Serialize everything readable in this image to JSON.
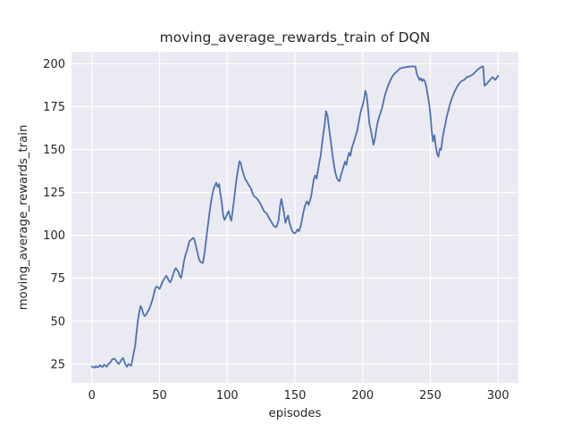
{
  "chart_data": {
    "type": "line",
    "title": "moving_average_rewards_train of DQN",
    "xlabel": "episodes",
    "ylabel": "moving_average_rewards_train",
    "xlim": [
      -15,
      315
    ],
    "ylim": [
      14,
      207
    ],
    "xticks": [
      0,
      50,
      100,
      150,
      200,
      250,
      300
    ],
    "yticks": [
      25,
      50,
      75,
      100,
      125,
      150,
      175,
      200
    ],
    "grid": true,
    "legend_position": "none",
    "style": "seaborn-darkgrid",
    "plot_bg_color": "#eaeaf2",
    "grid_color": "#ffffff",
    "line_color": "#4c72b0",
    "text_color": "#262626",
    "series": [
      {
        "name": "moving_average_rewards_train",
        "x_start": 0,
        "x_step": 1,
        "y": [
          23.5,
          23.2,
          22.9,
          23.8,
          23.1,
          23.3,
          24.4,
          23.6,
          23.3,
          24.6,
          24.1,
          23.4,
          24.8,
          25.4,
          26.2,
          27.7,
          28.1,
          27.9,
          27.0,
          25.6,
          25.1,
          26.3,
          27.7,
          28.6,
          26.5,
          24.6,
          23.4,
          25.0,
          24.4,
          24.0,
          27.6,
          31.8,
          35.4,
          43.0,
          50.0,
          55.2,
          58.9,
          57.2,
          54.3,
          52.9,
          53.6,
          55.1,
          56.4,
          58.2,
          60.5,
          63.1,
          66.3,
          69.4,
          70.2,
          69.6,
          68.8,
          70.4,
          72.6,
          74.1,
          75.2,
          76.4,
          75.0,
          73.4,
          72.6,
          74.5,
          77.0,
          79.5,
          80.9,
          79.8,
          78.6,
          76.1,
          75.2,
          79.5,
          84.7,
          88.2,
          90.5,
          93.2,
          96.5,
          97.2,
          97.9,
          98.6,
          96.9,
          93.4,
          90.0,
          86.5,
          84.8,
          84.0,
          83.9,
          88.5,
          94.3,
          101.2,
          107.3,
          113.4,
          119.4,
          123.8,
          127.2,
          129.3,
          130.7,
          128.1,
          129.9,
          123.8,
          118.6,
          111.6,
          109.0,
          110.6,
          112.5,
          114.2,
          110.8,
          108.5,
          114.2,
          120.3,
          127.2,
          133.3,
          138.5,
          143.2,
          142.0,
          138.5,
          135.9,
          133.3,
          131.9,
          130.7,
          129.0,
          128.1,
          126.4,
          123.8,
          122.6,
          122.0,
          121.5,
          120.3,
          119.1,
          117.7,
          116.0,
          114.2,
          113.5,
          112.9,
          111.5,
          109.9,
          108.7,
          107.3,
          105.9,
          105.0,
          104.7,
          106.2,
          109.0,
          116.9,
          121.2,
          116.9,
          112.5,
          107.3,
          109.9,
          111.6,
          107.3,
          104.7,
          102.4,
          101.4,
          101.2,
          102.1,
          103.5,
          102.4,
          104.7,
          108.2,
          112.5,
          116.0,
          118.6,
          119.8,
          117.7,
          120.1,
          122.9,
          128.0,
          133.0,
          134.9,
          133.0,
          138.0,
          142.7,
          146.4,
          153.1,
          159.4,
          164.6,
          172.4,
          169.8,
          163.7,
          157.6,
          151.6,
          145.5,
          140.3,
          135.9,
          133.3,
          131.9,
          131.6,
          135.1,
          137.7,
          140.3,
          142.9,
          141.1,
          145.5,
          148.1,
          146.4,
          150.7,
          153.3,
          155.9,
          158.5,
          161.1,
          165.4,
          169.8,
          173.3,
          175.9,
          179.3,
          184.3,
          181.5,
          173.9,
          165.0,
          161.8,
          157.0,
          152.8,
          156.0,
          161.0,
          165.6,
          168.5,
          171.0,
          173.4,
          176.5,
          180.2,
          183.0,
          185.4,
          187.6,
          189.6,
          191.2,
          192.7,
          193.8,
          194.6,
          195.3,
          196.1,
          196.8,
          197.4,
          197.6,
          197.8,
          197.9,
          198.0,
          198.2,
          198.3,
          198.4,
          198.4,
          198.4,
          198.4,
          198.4,
          194.0,
          192.3,
          190.5,
          191.6,
          189.9,
          191.0,
          189.6,
          186.5,
          181.8,
          177.5,
          170.8,
          161.0,
          154.7,
          158.3,
          151.9,
          147.4,
          145.8,
          150.5,
          150.0,
          156.8,
          160.9,
          164.6,
          168.8,
          171.9,
          175.0,
          177.6,
          180.2,
          182.1,
          183.9,
          185.5,
          187.0,
          188.1,
          189.1,
          189.9,
          190.3,
          190.6,
          191.4,
          192.2,
          192.5,
          192.7,
          193.2,
          193.6,
          194.2,
          195.0,
          195.9,
          196.6,
          197.2,
          197.8,
          198.3,
          198.4,
          187.2,
          187.8,
          188.7,
          189.6,
          190.5,
          191.4,
          192.2,
          191.4,
          190.6,
          191.8,
          193.0
        ]
      }
    ]
  }
}
